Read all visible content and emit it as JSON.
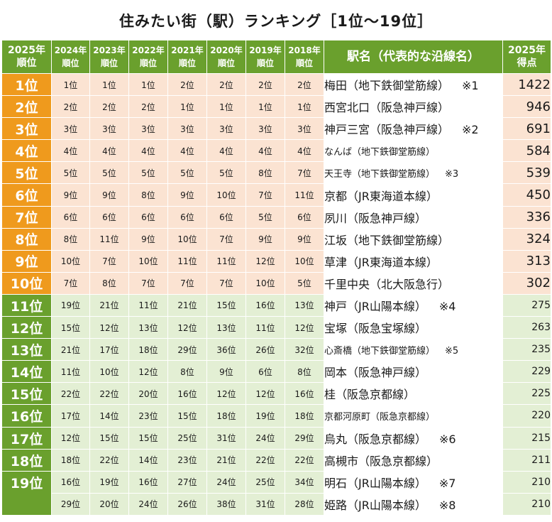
{
  "title": "住みたい街（駅）ランキング［1位～19位］",
  "headers": {
    "rank": [
      "2025年",
      "順位"
    ],
    "years": [
      [
        "2024年",
        "順位"
      ],
      [
        "2023年",
        "順位"
      ],
      [
        "2022年",
        "順位"
      ],
      [
        "2021年",
        "順位"
      ],
      [
        "2020年",
        "順位"
      ],
      [
        "2019年",
        "順位"
      ],
      [
        "2018年",
        "順位"
      ]
    ],
    "station": "駅名（代表的な沿線名）",
    "score": [
      "2025年",
      "得点"
    ]
  },
  "rows": [
    {
      "rank": "1位",
      "years": [
        "1位",
        "1位",
        "1位",
        "2位",
        "2位",
        "2位",
        "2位"
      ],
      "station": "梅田（地下鉄御堂筋線）",
      "note": "※1",
      "score": "1422"
    },
    {
      "rank": "2位",
      "years": [
        "2位",
        "2位",
        "2位",
        "1位",
        "1位",
        "1位",
        "1位"
      ],
      "station": "西宮北口（阪急神戸線）",
      "note": "",
      "score": "946"
    },
    {
      "rank": "3位",
      "years": [
        "3位",
        "3位",
        "3位",
        "3位",
        "3位",
        "3位",
        "3位"
      ],
      "station": "神戸三宮（阪急神戸線）",
      "note": "※2",
      "score": "691"
    },
    {
      "rank": "4位",
      "years": [
        "4位",
        "4位",
        "4位",
        "4位",
        "4位",
        "4位",
        "4位"
      ],
      "station": "なんば（地下鉄御堂筋線）",
      "note": "",
      "score": "584"
    },
    {
      "rank": "5位",
      "years": [
        "5位",
        "5位",
        "5位",
        "5位",
        "5位",
        "8位",
        "7位"
      ],
      "station": "天王寺（地下鉄御堂筋線）",
      "note": "※3",
      "score": "539"
    },
    {
      "rank": "6位",
      "years": [
        "9位",
        "9位",
        "8位",
        "9位",
        "10位",
        "7位",
        "11位"
      ],
      "station": "京都（JR東海道本線）",
      "note": "",
      "score": "450"
    },
    {
      "rank": "7位",
      "years": [
        "6位",
        "6位",
        "6位",
        "6位",
        "6位",
        "5位",
        "6位"
      ],
      "station": "夙川（阪急神戸線）",
      "note": "",
      "score": "336"
    },
    {
      "rank": "8位",
      "years": [
        "8位",
        "11位",
        "9位",
        "10位",
        "7位",
        "9位",
        "9位"
      ],
      "station": "江坂（地下鉄御堂筋線）",
      "note": "",
      "score": "324"
    },
    {
      "rank": "9位",
      "years": [
        "10位",
        "7位",
        "10位",
        "11位",
        "11位",
        "12位",
        "10位"
      ],
      "station": "草津（JR東海道本線）",
      "note": "",
      "score": "313"
    },
    {
      "rank": "10位",
      "years": [
        "7位",
        "8位",
        "7位",
        "7位",
        "7位",
        "10位",
        "5位"
      ],
      "station": "千里中央（北大阪急行）",
      "note": "",
      "score": "302"
    },
    {
      "rank": "11位",
      "years": [
        "19位",
        "21位",
        "11位",
        "21位",
        "15位",
        "16位",
        "13位"
      ],
      "station": "神戸（JR山陽本線）",
      "note": "※4",
      "score": "275"
    },
    {
      "rank": "12位",
      "years": [
        "15位",
        "12位",
        "13位",
        "12位",
        "13位",
        "11位",
        "12位"
      ],
      "station": "宝塚（阪急宝塚線）",
      "note": "",
      "score": "263"
    },
    {
      "rank": "13位",
      "years": [
        "21位",
        "17位",
        "18位",
        "29位",
        "36位",
        "26位",
        "32位"
      ],
      "station": "心斎橋（地下鉄御堂筋線）",
      "note": "※5",
      "score": "235"
    },
    {
      "rank": "14位",
      "years": [
        "11位",
        "10位",
        "12位",
        "8位",
        "9位",
        "6位",
        "8位"
      ],
      "station": "岡本（阪急神戸線）",
      "note": "",
      "score": "229"
    },
    {
      "rank": "15位",
      "years": [
        "22位",
        "22位",
        "20位",
        "16位",
        "12位",
        "12位",
        "16位"
      ],
      "station": "桂（阪急京都線）",
      "note": "",
      "score": "225"
    },
    {
      "rank": "16位",
      "years": [
        "17位",
        "14位",
        "23位",
        "15位",
        "18位",
        "19位",
        "18位"
      ],
      "station": "京都河原町（阪急京都線）",
      "note": "",
      "score": "220"
    },
    {
      "rank": "17位",
      "years": [
        "12位",
        "15位",
        "15位",
        "25位",
        "31位",
        "24位",
        "29位"
      ],
      "station": "烏丸（阪急京都線）",
      "note": "※6",
      "score": "215"
    },
    {
      "rank": "18位",
      "years": [
        "18位",
        "22位",
        "14位",
        "23位",
        "21位",
        "22位",
        "22位"
      ],
      "station": "高槻市（阪急京都線）",
      "note": "",
      "score": "211"
    },
    {
      "rank": "19位",
      "years": [
        "16位",
        "19位",
        "16位",
        "27位",
        "24位",
        "25位",
        "34位"
      ],
      "station": "明石（JR山陽本線）",
      "note": "※7",
      "score": "210"
    },
    {
      "rank": "",
      "years": [
        "29位",
        "20位",
        "24位",
        "26位",
        "38位",
        "31位",
        "28位"
      ],
      "station": "姫路（JR山陽本線）",
      "note": "※8",
      "score": "210"
    }
  ],
  "colors": {
    "header_green": "#6aa02d",
    "top_orange": "#ef9a1d",
    "top_cell": "#fbe3d2",
    "mid_cell": "#e3efd4"
  }
}
